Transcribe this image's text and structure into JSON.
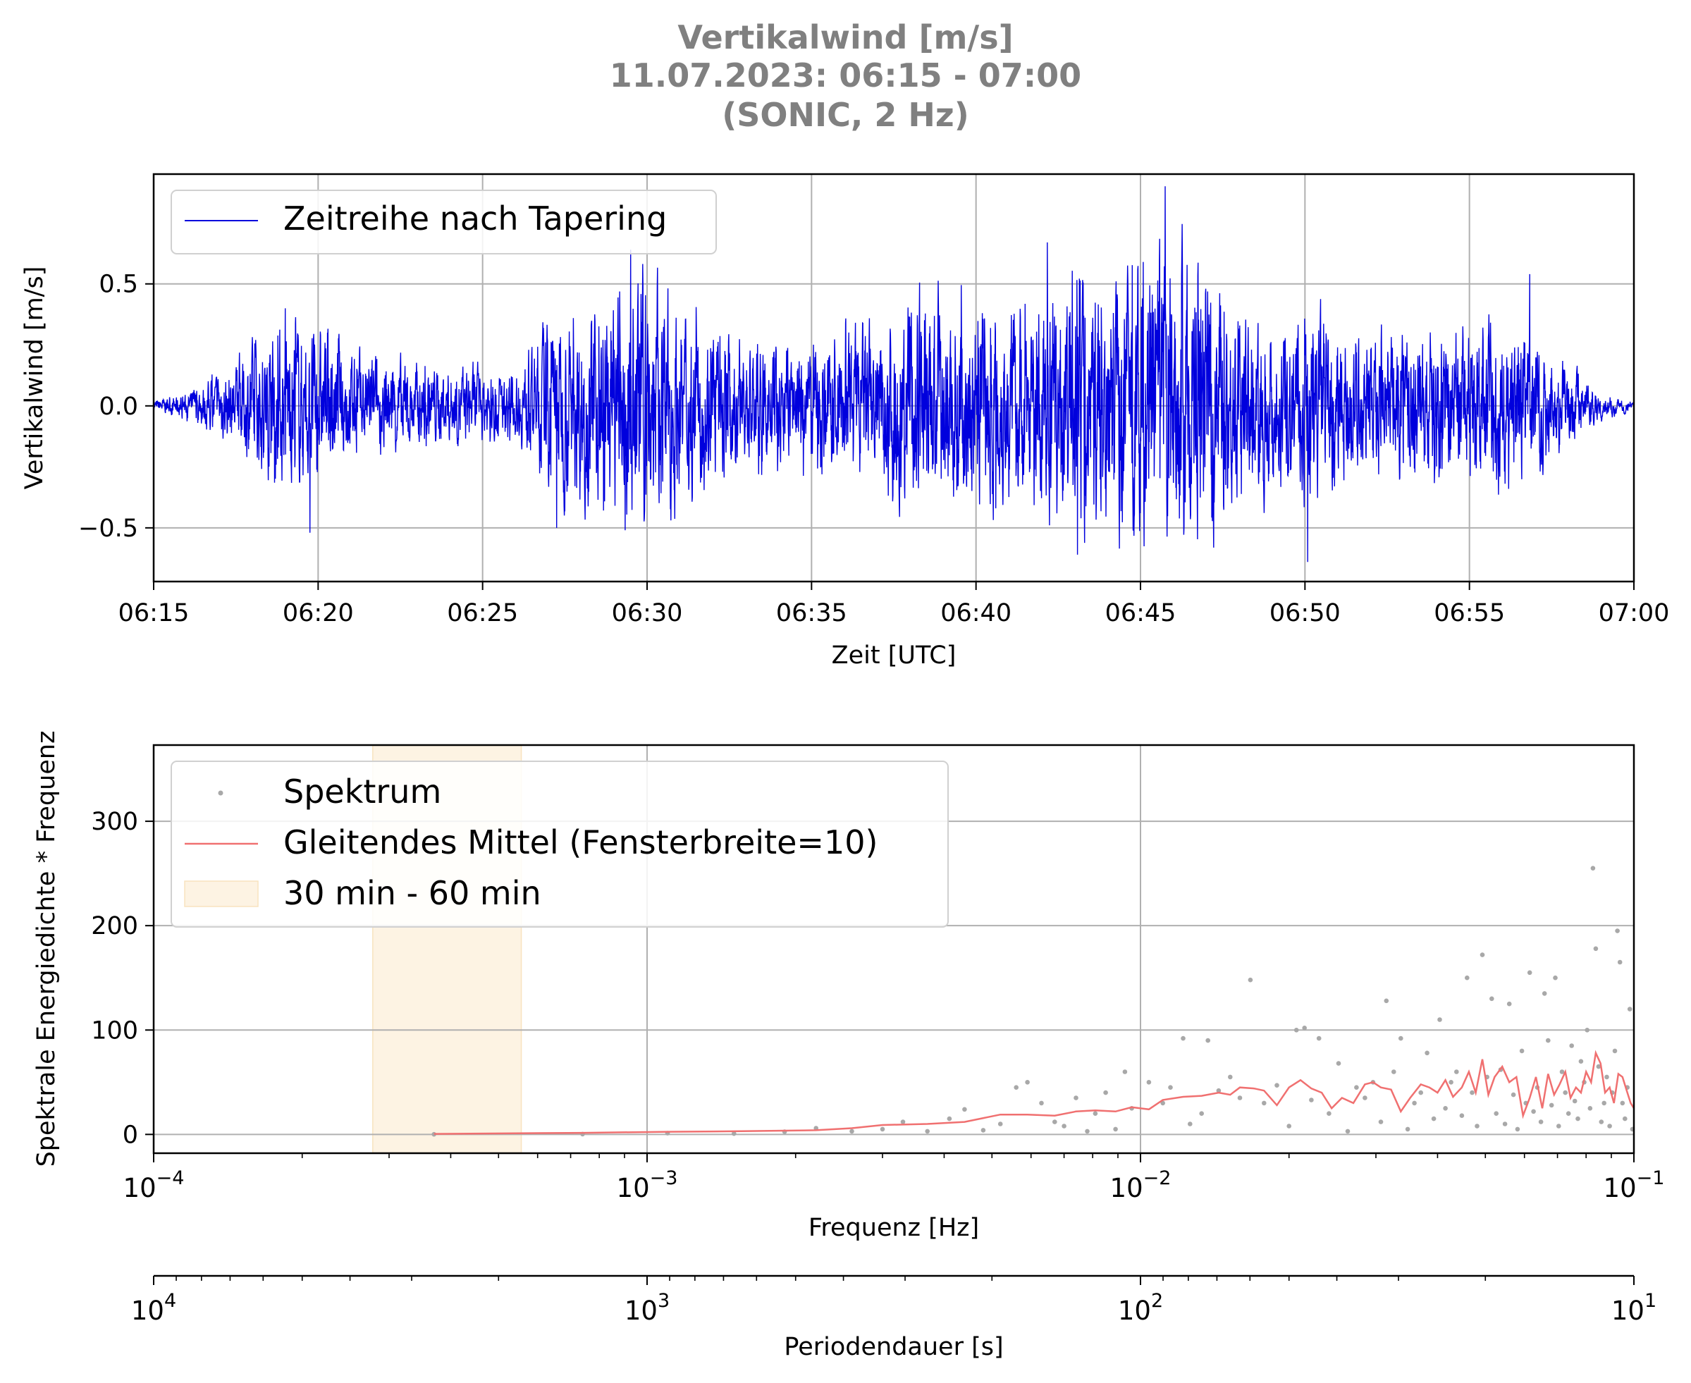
{
  "title": {
    "line1": "Vertikalwind [m/s]",
    "line2": "11.07.2023:  06:15 -  07:00",
    "line3": "(SONIC, 2 Hz)"
  },
  "colors": {
    "series_timeseries": "#0000dd",
    "spectrum_points": "#a8a8a8",
    "moving_average": "#f07070",
    "band_fill": "#fdf3e3",
    "title": "#808080",
    "grid": "#b0b0b0"
  },
  "chart_data": [
    {
      "type": "line",
      "ylabel": "Vertikalwind [m/s]",
      "xlabel": "Zeit [UTC]",
      "x_ticks": [
        "06:15",
        "06:20",
        "06:25",
        "06:30",
        "06:35",
        "06:40",
        "06:45",
        "06:50",
        "06:55",
        "07:00"
      ],
      "y_ticks": [
        "−0.5",
        "0.0",
        "0.5"
      ],
      "ylim": [
        -0.72,
        0.95
      ],
      "xlim": [
        "06:15",
        "07:00"
      ],
      "grid": true,
      "legend": "top-left",
      "series": [
        {
          "name": "Zeitreihe nach Tapering",
          "envelope": {
            "minutes": [
              0,
              1,
              2,
              3,
              4,
              5,
              6,
              7,
              8,
              9,
              10,
              11,
              12,
              13,
              14,
              15,
              16,
              17,
              18,
              19,
              20,
              21,
              22,
              23,
              24,
              25,
              26,
              27,
              28,
              29,
              30,
              31,
              32,
              33,
              34,
              35,
              36,
              37,
              38,
              39,
              40,
              41,
              42,
              43,
              44,
              45
            ],
            "amplitude": [
              0.02,
              0.05,
              0.12,
              0.22,
              0.3,
              0.28,
              0.2,
              0.18,
              0.16,
              0.15,
              0.14,
              0.12,
              0.3,
              0.35,
              0.4,
              0.5,
              0.35,
              0.3,
              0.25,
              0.22,
              0.25,
              0.28,
              0.32,
              0.4,
              0.42,
              0.38,
              0.36,
              0.4,
              0.45,
              0.48,
              0.5,
              0.55,
              0.5,
              0.35,
              0.3,
              0.35,
              0.3,
              0.25,
              0.28,
              0.3,
              0.28,
              0.32,
              0.25,
              0.15,
              0.05,
              0.02
            ]
          },
          "peaks": [
            {
              "time": "06:19:00",
              "value": 0.4
            },
            {
              "time": "06:19:45",
              "value": -0.52
            },
            {
              "time": "06:29:30",
              "value": 0.64
            },
            {
              "time": "06:29:20",
              "value": -0.51
            },
            {
              "time": "06:27:15",
              "value": -0.5
            },
            {
              "time": "06:43:05",
              "value": -0.61
            },
            {
              "time": "06:42:10",
              "value": 0.67
            },
            {
              "time": "06:45:45",
              "value": 0.9
            },
            {
              "time": "06:45:05",
              "value": 0.59
            },
            {
              "time": "06:50:05",
              "value": -0.64
            },
            {
              "time": "06:56:50",
              "value": 0.54
            }
          ]
        }
      ]
    },
    {
      "type": "scatter",
      "xlabel": "Frequenz [Hz]",
      "ylabel": "Spektrale Energiedichte * Frequenz",
      "xscale": "log",
      "xlim": [
        0.0001,
        0.1
      ],
      "ylim": [
        -18,
        373
      ],
      "x_ticks": [
        {
          "base": "10",
          "exp": "−4"
        },
        {
          "base": "10",
          "exp": "−3"
        },
        {
          "base": "10",
          "exp": "−2"
        },
        {
          "base": "10",
          "exp": "−1"
        }
      ],
      "y_ticks": [
        "0",
        "100",
        "200",
        "300"
      ],
      "grid": true,
      "legend": "top-left",
      "legend_entries": {
        "spectrum": "Spektrum",
        "moving_average": "Gleitendes Mittel (Fensterbreite=10)",
        "band": "30 min - 60 min"
      },
      "band_hz": [
        0.000278,
        0.000556
      ],
      "spectrum_sample": [
        [
          0.00037,
          0.1
        ],
        [
          0.00074,
          0.3
        ],
        [
          0.0011,
          1.2
        ],
        [
          0.0015,
          0.8
        ],
        [
          0.0019,
          2.5
        ],
        [
          0.0022,
          6
        ],
        [
          0.0026,
          3
        ],
        [
          0.003,
          5
        ],
        [
          0.0033,
          12
        ],
        [
          0.0037,
          3
        ],
        [
          0.0041,
          15
        ],
        [
          0.0044,
          24
        ],
        [
          0.0048,
          4
        ],
        [
          0.0052,
          10
        ],
        [
          0.0056,
          45
        ],
        [
          0.0059,
          50
        ],
        [
          0.0063,
          30
        ],
        [
          0.0067,
          12
        ],
        [
          0.007,
          8
        ],
        [
          0.0074,
          35
        ],
        [
          0.0078,
          3
        ],
        [
          0.0081,
          20
        ],
        [
          0.0085,
          40
        ],
        [
          0.0089,
          5
        ],
        [
          0.0093,
          60
        ],
        [
          0.0096,
          25
        ],
        [
          0.0104,
          50
        ],
        [
          0.0111,
          30
        ],
        [
          0.0115,
          45
        ],
        [
          0.0122,
          92
        ],
        [
          0.0126,
          10
        ],
        [
          0.0133,
          20
        ],
        [
          0.0137,
          90
        ],
        [
          0.0144,
          42
        ],
        [
          0.0152,
          55
        ],
        [
          0.0159,
          35
        ],
        [
          0.0167,
          148
        ],
        [
          0.0178,
          30
        ],
        [
          0.0189,
          47
        ],
        [
          0.02,
          8
        ],
        [
          0.0207,
          100
        ],
        [
          0.0215,
          102
        ],
        [
          0.0222,
          33
        ],
        [
          0.023,
          92
        ],
        [
          0.0241,
          20
        ],
        [
          0.0252,
          68
        ],
        [
          0.0263,
          3
        ],
        [
          0.0274,
          45
        ],
        [
          0.0285,
          35
        ],
        [
          0.0296,
          50
        ],
        [
          0.0307,
          12
        ],
        [
          0.0315,
          128
        ],
        [
          0.0326,
          60
        ],
        [
          0.0337,
          92
        ],
        [
          0.0348,
          5
        ],
        [
          0.0359,
          30
        ],
        [
          0.037,
          40
        ],
        [
          0.0381,
          78
        ],
        [
          0.0393,
          15
        ],
        [
          0.0404,
          110
        ],
        [
          0.0415,
          25
        ],
        [
          0.0426,
          50
        ],
        [
          0.0437,
          60
        ],
        [
          0.0448,
          18
        ],
        [
          0.0459,
          150
        ],
        [
          0.047,
          40
        ],
        [
          0.0481,
          8
        ],
        [
          0.0493,
          172
        ],
        [
          0.0504,
          55
        ],
        [
          0.0515,
          130
        ],
        [
          0.0526,
          20
        ],
        [
          0.0537,
          62
        ],
        [
          0.0548,
          10
        ],
        [
          0.0559,
          125
        ],
        [
          0.057,
          38
        ],
        [
          0.0581,
          5
        ],
        [
          0.0593,
          80
        ],
        [
          0.0604,
          30
        ],
        [
          0.0615,
          155
        ],
        [
          0.0626,
          22
        ],
        [
          0.0637,
          45
        ],
        [
          0.0648,
          12
        ],
        [
          0.0659,
          135
        ],
        [
          0.067,
          90
        ],
        [
          0.0681,
          28
        ],
        [
          0.0693,
          150
        ],
        [
          0.0704,
          8
        ],
        [
          0.0715,
          60
        ],
        [
          0.0726,
          40
        ],
        [
          0.0737,
          20
        ],
        [
          0.0748,
          85
        ],
        [
          0.0759,
          32
        ],
        [
          0.077,
          15
        ],
        [
          0.0781,
          70
        ],
        [
          0.0793,
          50
        ],
        [
          0.0804,
          100
        ],
        [
          0.0815,
          25
        ],
        [
          0.0826,
          255
        ],
        [
          0.0837,
          178
        ],
        [
          0.0848,
          65
        ],
        [
          0.0859,
          12
        ],
        [
          0.087,
          30
        ],
        [
          0.0881,
          55
        ],
        [
          0.0893,
          8
        ],
        [
          0.0904,
          40
        ],
        [
          0.0915,
          80
        ],
        [
          0.0926,
          195
        ],
        [
          0.0937,
          165
        ],
        [
          0.0948,
          30
        ],
        [
          0.0959,
          15
        ],
        [
          0.097,
          45
        ],
        [
          0.0981,
          120
        ],
        [
          0.0993,
          5
        ]
      ],
      "moving_average_sample": [
        [
          0.00037,
          0.5
        ],
        [
          0.00074,
          1.5
        ],
        [
          0.0011,
          2.5
        ],
        [
          0.0015,
          3
        ],
        [
          0.0022,
          4
        ],
        [
          0.0026,
          6
        ],
        [
          0.003,
          9
        ],
        [
          0.0037,
          10
        ],
        [
          0.0044,
          12
        ],
        [
          0.0052,
          19
        ],
        [
          0.0059,
          19
        ],
        [
          0.0067,
          18
        ],
        [
          0.0074,
          22
        ],
        [
          0.0081,
          23
        ],
        [
          0.0089,
          22
        ],
        [
          0.0096,
          26
        ],
        [
          0.0104,
          24
        ],
        [
          0.0111,
          33
        ],
        [
          0.0122,
          36
        ],
        [
          0.0133,
          37
        ],
        [
          0.0144,
          40
        ],
        [
          0.0152,
          38
        ],
        [
          0.0159,
          45
        ],
        [
          0.017,
          44
        ],
        [
          0.0178,
          42
        ],
        [
          0.0189,
          28
        ],
        [
          0.02,
          45
        ],
        [
          0.0211,
          52
        ],
        [
          0.0222,
          44
        ],
        [
          0.0233,
          40
        ],
        [
          0.0244,
          25
        ],
        [
          0.0256,
          35
        ],
        [
          0.027,
          30
        ],
        [
          0.0285,
          48
        ],
        [
          0.0296,
          50
        ],
        [
          0.0307,
          45
        ],
        [
          0.0322,
          43
        ],
        [
          0.0337,
          22
        ],
        [
          0.0352,
          35
        ],
        [
          0.037,
          48
        ],
        [
          0.0385,
          45
        ],
        [
          0.04,
          40
        ],
        [
          0.0415,
          52
        ],
        [
          0.043,
          36
        ],
        [
          0.0448,
          45
        ],
        [
          0.0463,
          60
        ],
        [
          0.0478,
          40
        ],
        [
          0.0493,
          72
        ],
        [
          0.0507,
          38
        ],
        [
          0.0522,
          55
        ],
        [
          0.0541,
          65
        ],
        [
          0.0559,
          50
        ],
        [
          0.0578,
          55
        ],
        [
          0.0596,
          18
        ],
        [
          0.0615,
          35
        ],
        [
          0.0633,
          55
        ],
        [
          0.0652,
          25
        ],
        [
          0.067,
          58
        ],
        [
          0.0689,
          38
        ],
        [
          0.0707,
          48
        ],
        [
          0.0726,
          60
        ],
        [
          0.0744,
          35
        ],
        [
          0.0763,
          45
        ],
        [
          0.0781,
          40
        ],
        [
          0.08,
          60
        ],
        [
          0.0819,
          50
        ],
        [
          0.0837,
          78
        ],
        [
          0.0856,
          68
        ],
        [
          0.0874,
          40
        ],
        [
          0.0893,
          45
        ],
        [
          0.0911,
          30
        ],
        [
          0.093,
          58
        ],
        [
          0.0948,
          55
        ],
        [
          0.0967,
          42
        ],
        [
          0.0985,
          30
        ],
        [
          0.1,
          25
        ]
      ]
    },
    {
      "type": "axis",
      "xlabel": "Periodendauer [s]",
      "xscale": "log",
      "x_ticks": [
        {
          "base": "10",
          "exp": "4"
        },
        {
          "base": "10",
          "exp": "3"
        },
        {
          "base": "10",
          "exp": "2"
        },
        {
          "base": "10",
          "exp": "1"
        }
      ]
    }
  ]
}
